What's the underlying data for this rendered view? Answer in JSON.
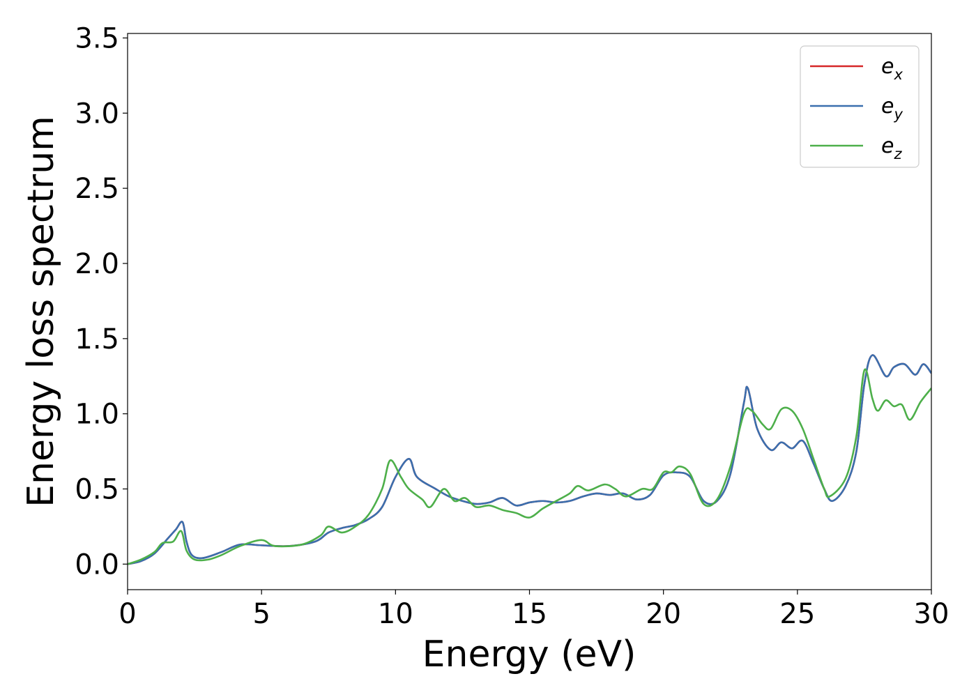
{
  "chart_data": {
    "type": "line",
    "xlabel": "Energy (eV)",
    "ylabel": "Energy loss spectrum",
    "xlim": [
      0,
      30
    ],
    "ylim": [
      -0.17,
      3.53
    ],
    "xticks": [
      0,
      5,
      10,
      15,
      20,
      25,
      30
    ],
    "xtick_labels": [
      "0",
      "5",
      "10",
      "15",
      "20",
      "25",
      "30"
    ],
    "yticks": [
      0.0,
      0.5,
      1.0,
      1.5,
      2.0,
      2.5,
      3.0,
      3.5
    ],
    "ytick_labels": [
      "0.0",
      "0.5",
      "1.0",
      "1.5",
      "2.0",
      "2.5",
      "3.0",
      "3.5"
    ],
    "grid": false,
    "legend_position": "top-right",
    "series": [
      {
        "name": "e_x",
        "legend_base": "e",
        "legend_sub": "x",
        "color": "#d62728",
        "points": [
          [
            0,
            0
          ],
          [
            0.5,
            0.02
          ],
          [
            1,
            0.07
          ],
          [
            1.5,
            0.17
          ],
          [
            1.8,
            0.23
          ],
          [
            2.05,
            0.28
          ],
          [
            2.2,
            0.15
          ],
          [
            2.4,
            0.06
          ],
          [
            2.8,
            0.04
          ],
          [
            3.5,
            0.08
          ],
          [
            4.2,
            0.13
          ],
          [
            5,
            0.125
          ],
          [
            6,
            0.12
          ],
          [
            7,
            0.15
          ],
          [
            7.5,
            0.21
          ],
          [
            8,
            0.24
          ],
          [
            8.5,
            0.26
          ],
          [
            9,
            0.3
          ],
          [
            9.5,
            0.38
          ],
          [
            10,
            0.58
          ],
          [
            10.5,
            0.7
          ],
          [
            10.8,
            0.58
          ],
          [
            11.5,
            0.5
          ],
          [
            12,
            0.45
          ],
          [
            12.5,
            0.42
          ],
          [
            13,
            0.4
          ],
          [
            13.5,
            0.41
          ],
          [
            14,
            0.44
          ],
          [
            14.5,
            0.39
          ],
          [
            15,
            0.41
          ],
          [
            15.5,
            0.42
          ],
          [
            16,
            0.41
          ],
          [
            16.5,
            0.42
          ],
          [
            17,
            0.45
          ],
          [
            17.5,
            0.47
          ],
          [
            18,
            0.46
          ],
          [
            18.5,
            0.47
          ],
          [
            19,
            0.43
          ],
          [
            19.5,
            0.46
          ],
          [
            20,
            0.59
          ],
          [
            20.5,
            0.61
          ],
          [
            21,
            0.58
          ],
          [
            21.5,
            0.42
          ],
          [
            22,
            0.42
          ],
          [
            22.5,
            0.6
          ],
          [
            23,
            1.07
          ],
          [
            23.15,
            1.17
          ],
          [
            23.5,
            0.9
          ],
          [
            24,
            0.76
          ],
          [
            24.4,
            0.81
          ],
          [
            24.8,
            0.77
          ],
          [
            25.2,
            0.82
          ],
          [
            25.6,
            0.67
          ],
          [
            26,
            0.5
          ],
          [
            26.3,
            0.42
          ],
          [
            26.8,
            0.52
          ],
          [
            27.2,
            0.75
          ],
          [
            27.5,
            1.2
          ],
          [
            27.8,
            1.39
          ],
          [
            28.3,
            1.25
          ],
          [
            28.6,
            1.31
          ],
          [
            29,
            1.33
          ],
          [
            29.4,
            1.26
          ],
          [
            29.7,
            1.33
          ],
          [
            30,
            1.27
          ]
        ]
      },
      {
        "name": "e_y",
        "legend_base": "e",
        "legend_sub": "y",
        "color": "#3a6fae",
        "points": [
          [
            0,
            0
          ],
          [
            0.5,
            0.02
          ],
          [
            1,
            0.07
          ],
          [
            1.5,
            0.17
          ],
          [
            1.8,
            0.23
          ],
          [
            2.05,
            0.28
          ],
          [
            2.2,
            0.15
          ],
          [
            2.4,
            0.06
          ],
          [
            2.8,
            0.04
          ],
          [
            3.5,
            0.08
          ],
          [
            4.2,
            0.13
          ],
          [
            5,
            0.125
          ],
          [
            6,
            0.12
          ],
          [
            7,
            0.15
          ],
          [
            7.5,
            0.21
          ],
          [
            8,
            0.24
          ],
          [
            8.5,
            0.26
          ],
          [
            9,
            0.3
          ],
          [
            9.5,
            0.38
          ],
          [
            10,
            0.58
          ],
          [
            10.5,
            0.7
          ],
          [
            10.8,
            0.58
          ],
          [
            11.5,
            0.5
          ],
          [
            12,
            0.45
          ],
          [
            12.5,
            0.42
          ],
          [
            13,
            0.4
          ],
          [
            13.5,
            0.41
          ],
          [
            14,
            0.44
          ],
          [
            14.5,
            0.39
          ],
          [
            15,
            0.41
          ],
          [
            15.5,
            0.42
          ],
          [
            16,
            0.41
          ],
          [
            16.5,
            0.42
          ],
          [
            17,
            0.45
          ],
          [
            17.5,
            0.47
          ],
          [
            18,
            0.46
          ],
          [
            18.5,
            0.47
          ],
          [
            19,
            0.43
          ],
          [
            19.5,
            0.46
          ],
          [
            20,
            0.59
          ],
          [
            20.5,
            0.61
          ],
          [
            21,
            0.58
          ],
          [
            21.5,
            0.42
          ],
          [
            22,
            0.42
          ],
          [
            22.5,
            0.6
          ],
          [
            23,
            1.07
          ],
          [
            23.15,
            1.17
          ],
          [
            23.5,
            0.9
          ],
          [
            24,
            0.76
          ],
          [
            24.4,
            0.81
          ],
          [
            24.8,
            0.77
          ],
          [
            25.2,
            0.82
          ],
          [
            25.6,
            0.67
          ],
          [
            26,
            0.5
          ],
          [
            26.3,
            0.42
          ],
          [
            26.8,
            0.52
          ],
          [
            27.2,
            0.75
          ],
          [
            27.5,
            1.2
          ],
          [
            27.8,
            1.39
          ],
          [
            28.3,
            1.25
          ],
          [
            28.6,
            1.31
          ],
          [
            29,
            1.33
          ],
          [
            29.4,
            1.26
          ],
          [
            29.7,
            1.33
          ],
          [
            30,
            1.27
          ]
        ]
      },
      {
        "name": "e_z",
        "legend_base": "e",
        "legend_sub": "z",
        "color": "#4daf4a",
        "points": [
          [
            0,
            0
          ],
          [
            0.5,
            0.03
          ],
          [
            1,
            0.08
          ],
          [
            1.3,
            0.14
          ],
          [
            1.7,
            0.15
          ],
          [
            2,
            0.22
          ],
          [
            2.2,
            0.09
          ],
          [
            2.5,
            0.03
          ],
          [
            3,
            0.03
          ],
          [
            3.5,
            0.06
          ],
          [
            4.2,
            0.12
          ],
          [
            5,
            0.16
          ],
          [
            5.5,
            0.12
          ],
          [
            6.5,
            0.13
          ],
          [
            7.2,
            0.19
          ],
          [
            7.5,
            0.25
          ],
          [
            8,
            0.21
          ],
          [
            8.5,
            0.25
          ],
          [
            9,
            0.33
          ],
          [
            9.5,
            0.5
          ],
          [
            9.8,
            0.69
          ],
          [
            10.2,
            0.58
          ],
          [
            10.5,
            0.5
          ],
          [
            11,
            0.43
          ],
          [
            11.3,
            0.38
          ],
          [
            11.8,
            0.5
          ],
          [
            12.2,
            0.42
          ],
          [
            12.6,
            0.44
          ],
          [
            13,
            0.38
          ],
          [
            13.5,
            0.39
          ],
          [
            14,
            0.36
          ],
          [
            14.5,
            0.34
          ],
          [
            15,
            0.31
          ],
          [
            15.5,
            0.37
          ],
          [
            16,
            0.42
          ],
          [
            16.5,
            0.47
          ],
          [
            16.8,
            0.52
          ],
          [
            17.2,
            0.49
          ],
          [
            17.8,
            0.53
          ],
          [
            18.2,
            0.5
          ],
          [
            18.6,
            0.45
          ],
          [
            19.2,
            0.5
          ],
          [
            19.6,
            0.5
          ],
          [
            20,
            0.61
          ],
          [
            20.3,
            0.61
          ],
          [
            20.6,
            0.65
          ],
          [
            21,
            0.6
          ],
          [
            21.5,
            0.4
          ],
          [
            22,
            0.43
          ],
          [
            22.5,
            0.65
          ],
          [
            23,
            1.0
          ],
          [
            23.3,
            1.02
          ],
          [
            23.7,
            0.93
          ],
          [
            24,
            0.9
          ],
          [
            24.4,
            1.03
          ],
          [
            24.8,
            1.02
          ],
          [
            25.2,
            0.9
          ],
          [
            25.6,
            0.7
          ],
          [
            26,
            0.5
          ],
          [
            26.2,
            0.45
          ],
          [
            26.8,
            0.57
          ],
          [
            27.2,
            0.85
          ],
          [
            27.5,
            1.29
          ],
          [
            27.8,
            1.1
          ],
          [
            28,
            1.02
          ],
          [
            28.3,
            1.09
          ],
          [
            28.6,
            1.05
          ],
          [
            28.9,
            1.06
          ],
          [
            29.2,
            0.96
          ],
          [
            29.6,
            1.08
          ],
          [
            30,
            1.17
          ]
        ]
      }
    ]
  }
}
